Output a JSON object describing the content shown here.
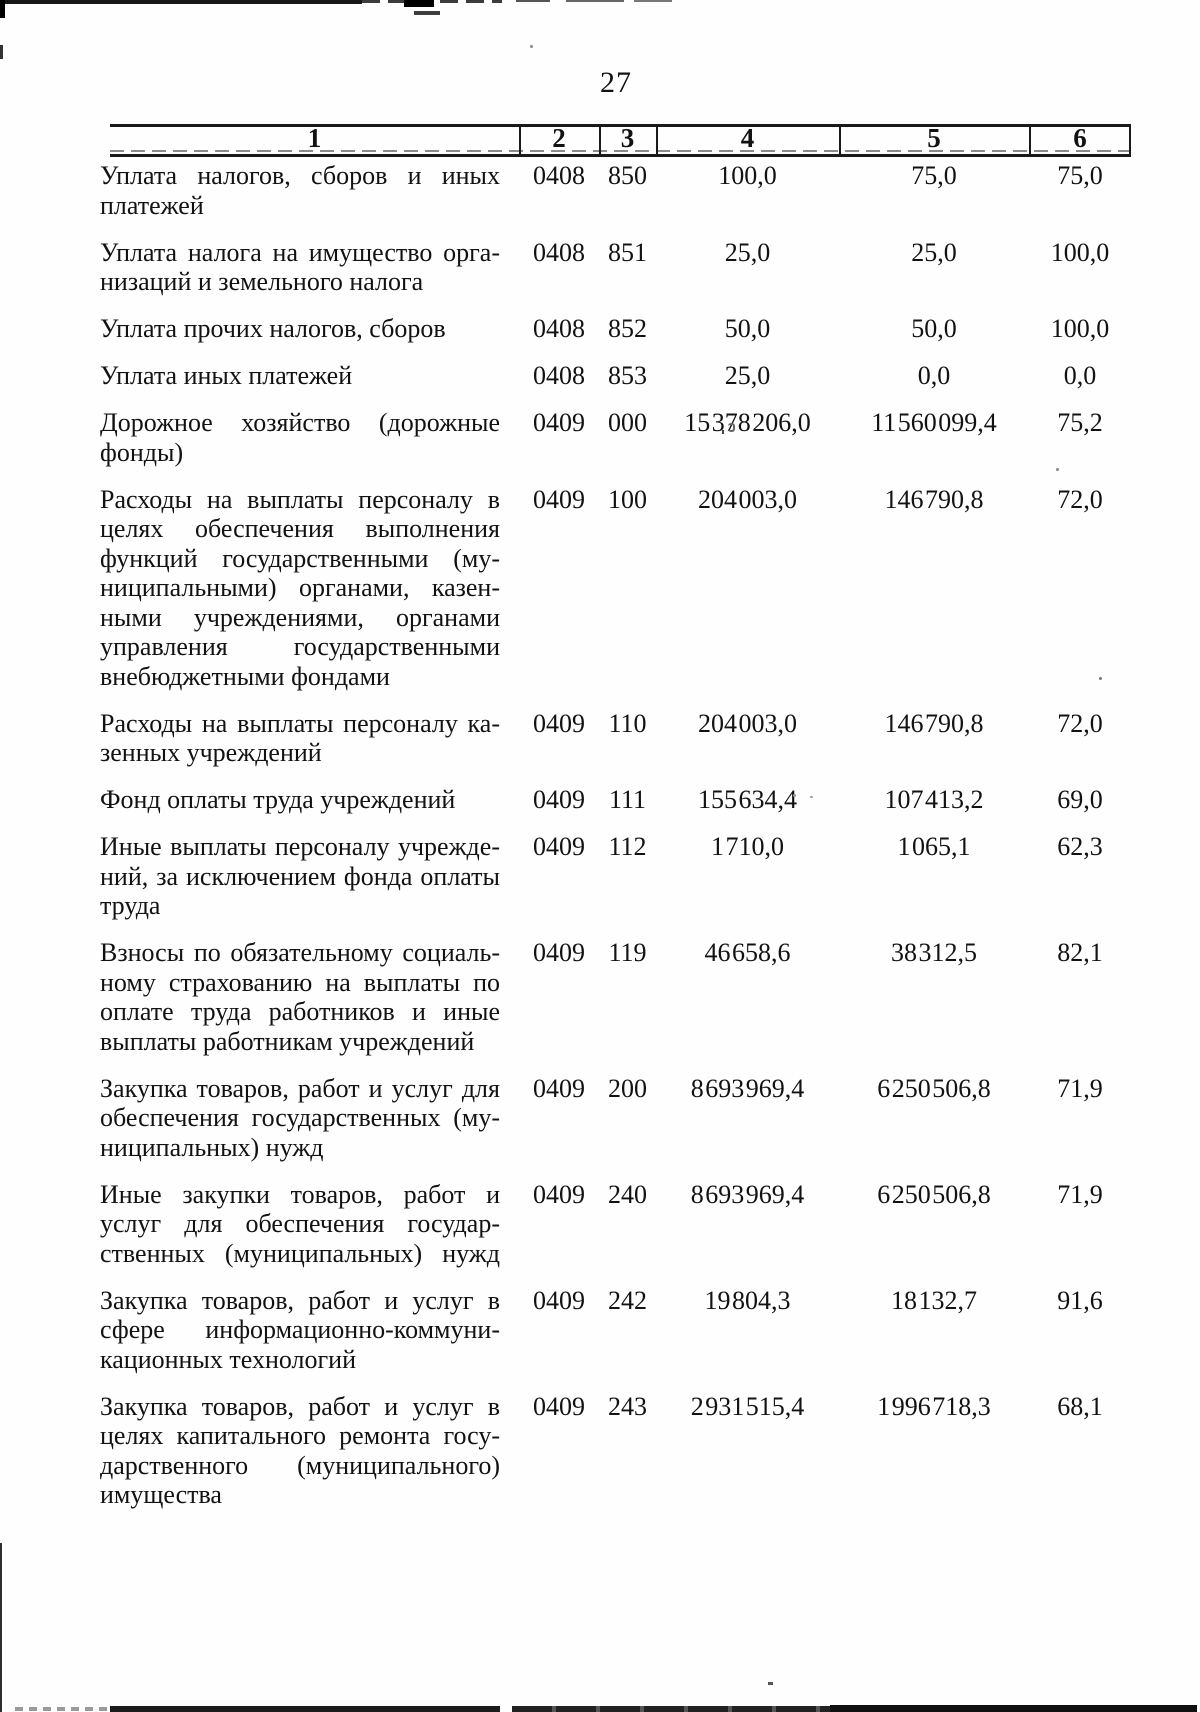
{
  "page": {
    "number": "27"
  },
  "table": {
    "header": {
      "labels": [
        "1",
        "2",
        "3",
        "4",
        "5",
        "6"
      ]
    },
    "rows": [
      {
        "name_lines": [
          "Уплата налогов, сборов и иных",
          "платежей"
        ],
        "last_line_justified": false,
        "c2": "0408",
        "c3": "850",
        "c4": "100,0",
        "c5": "75,0",
        "c6": "75,0"
      },
      {
        "name_lines": [
          "Уплата налога на имущество орга-",
          "низаций и земельного налога"
        ],
        "last_line_justified": false,
        "c2": "0408",
        "c3": "851",
        "c4": "25,0",
        "c5": "25,0",
        "c6": "100,0"
      },
      {
        "name_lines": [
          "Уплата прочих налогов, сборов"
        ],
        "last_line_justified": false,
        "c2": "0408",
        "c3": "852",
        "c4": "50,0",
        "c5": "50,0",
        "c6": "100,0"
      },
      {
        "name_lines": [
          "Уплата иных платежей"
        ],
        "last_line_justified": false,
        "c2": "0408",
        "c3": "853",
        "c4": "25,0",
        "c5": "0,0",
        "c6": "0,0"
      },
      {
        "name_lines": [
          "Дорожное хозяйство (дорожные",
          "фонды)"
        ],
        "last_line_justified": false,
        "c2": "0409",
        "c3": "000",
        "c4": "15 378 206,0",
        "c5": "11 560 099,4",
        "c6": "75,2"
      },
      {
        "name_lines": [
          "Расходы на выплаты персоналу в",
          "целях обеспечения выполнения",
          "функций государственными (му-",
          "ниципальными) органами, казен-",
          "ными учреждениями, органами",
          "управления государственными",
          "внебюджетными фондами"
        ],
        "last_line_justified": false,
        "c2": "0409",
        "c3": "100",
        "c4": "204 003,0",
        "c5": "146 790,8",
        "c6": "72,0"
      },
      {
        "name_lines": [
          "Расходы на выплаты персоналу ка-",
          "зенных учреждений"
        ],
        "last_line_justified": false,
        "c2": "0409",
        "c3": "110",
        "c4": "204 003,0",
        "c5": "146 790,8",
        "c6": "72,0"
      },
      {
        "name_lines": [
          "Фонд оплаты труда учреждений"
        ],
        "last_line_justified": false,
        "c2": "0409",
        "c3": "111",
        "c4": "155 634,4",
        "c5": "107 413,2",
        "c6": "69,0"
      },
      {
        "name_lines": [
          "Иные выплаты персоналу учрежде-",
          "ний, за исключением фонда оплаты",
          "труда"
        ],
        "last_line_justified": false,
        "c2": "0409",
        "c3": "112",
        "c4": "1 710,0",
        "c5": "1 065,1",
        "c6": "62,3"
      },
      {
        "name_lines": [
          "Взносы по обязательному социаль-",
          "ному страхованию на выплаты по",
          "оплате труда работников и иные",
          "выплаты работникам учреждений"
        ],
        "last_line_justified": false,
        "c2": "0409",
        "c3": "119",
        "c4": "46 658,6",
        "c5": "38 312,5",
        "c6": "82,1"
      },
      {
        "name_lines": [
          "Закупка товаров, работ и услуг для",
          "обеспечения государственных (му-",
          "ниципальных) нужд"
        ],
        "last_line_justified": false,
        "c2": "0409",
        "c3": "200",
        "c4": "8 693 969,4",
        "c5": "6 250 506,8",
        "c6": "71,9"
      },
      {
        "name_lines": [
          "Иные закупки товаров, работ и",
          "услуг для обеспечения государ-",
          "ственных (муниципальных) нужд"
        ],
        "last_line_justified": true,
        "c2": "0409",
        "c3": "240",
        "c4": "8 693 969,4",
        "c5": "6 250 506,8",
        "c6": "71,9"
      },
      {
        "name_lines": [
          "Закупка товаров, работ и услуг в",
          "сфере информационно-коммуни-",
          "кационных технологий"
        ],
        "last_line_justified": false,
        "c2": "0409",
        "c3": "242",
        "c4": "19 804,3",
        "c5": "18 132,7",
        "c6": "91,6"
      },
      {
        "name_lines": [
          "Закупка товаров, работ и услуг в",
          "целях капитального ремонта госу-",
          "дарственного (муниципального)",
          "имущества"
        ],
        "last_line_justified": false,
        "c2": "0409",
        "c3": "243",
        "c4": "2 931 515,4",
        "c5": "1 996 718,3",
        "c6": "68,1"
      }
    ]
  },
  "colors": {
    "ink": "#121212",
    "paper": "#fefefe"
  }
}
